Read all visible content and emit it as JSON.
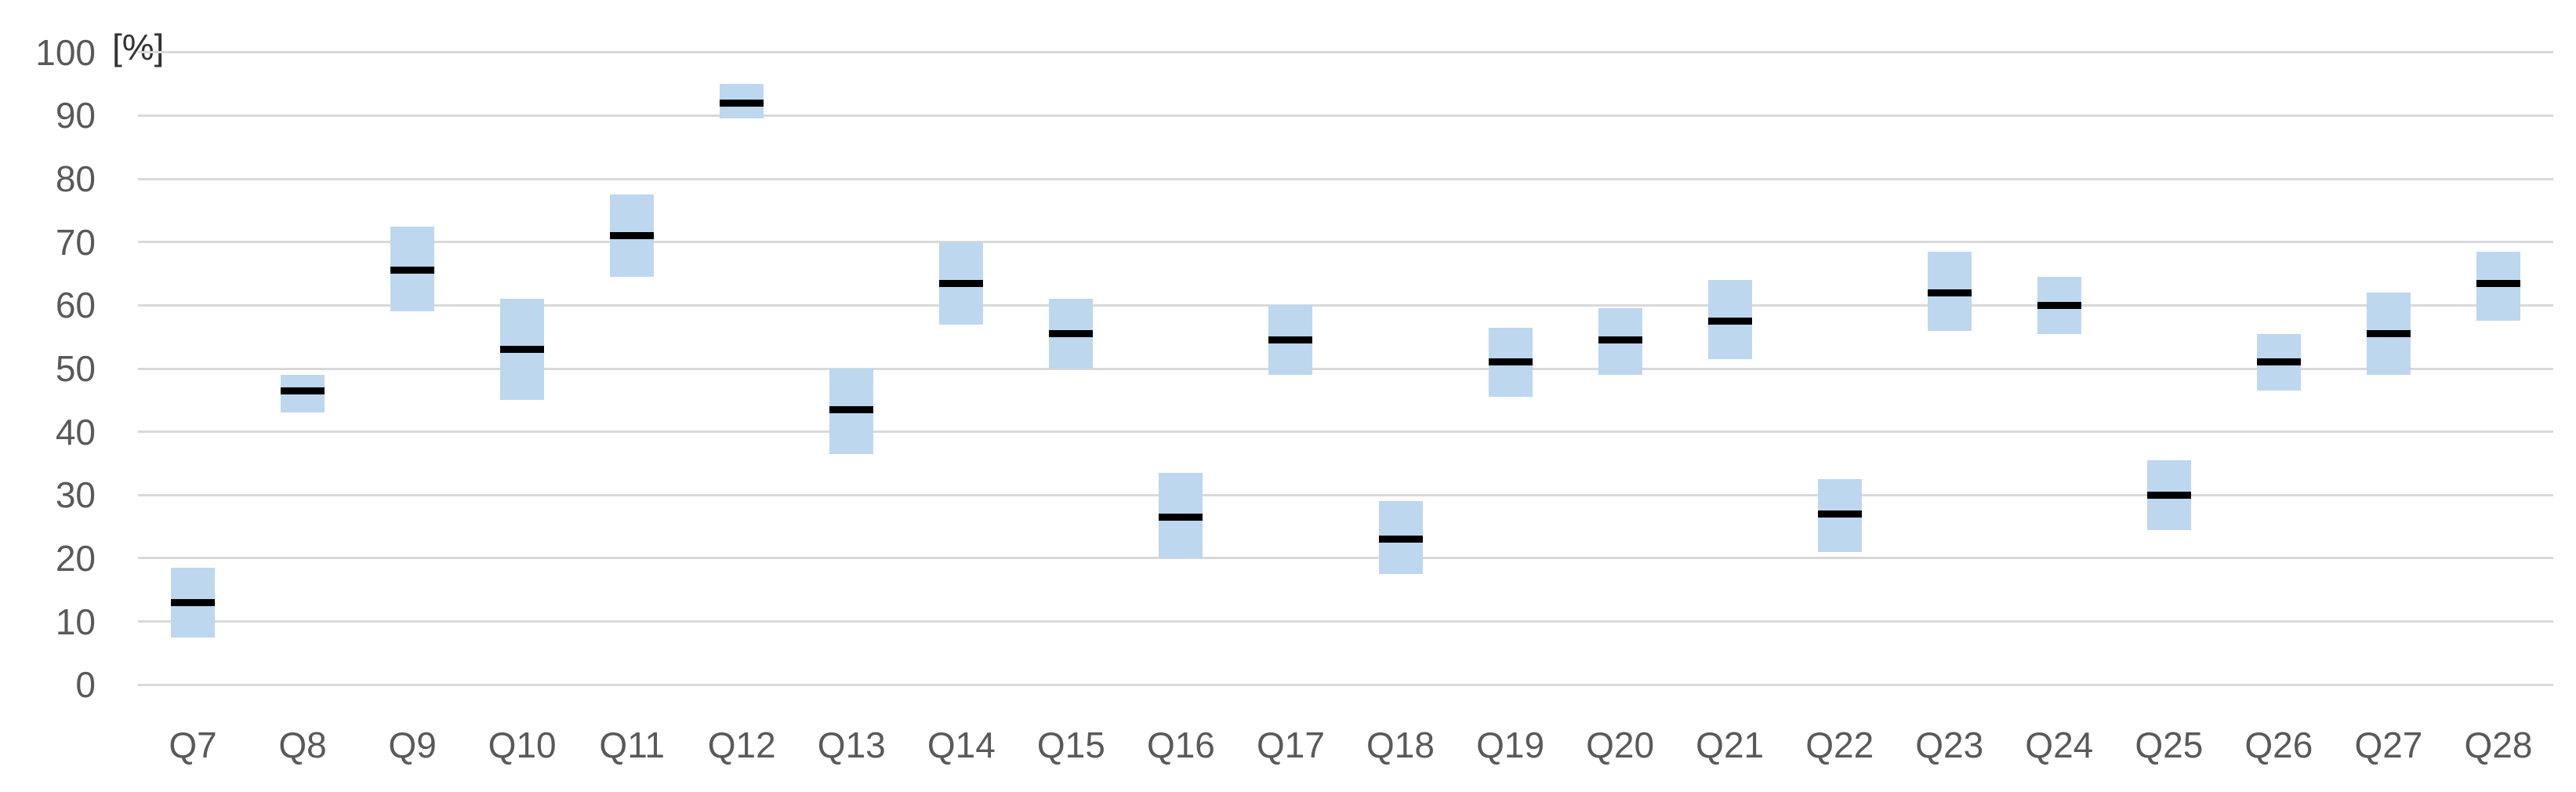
{
  "chart_data": {
    "type": "bar",
    "subtype": "floating-range-with-median",
    "title": "",
    "unit_label": "[%]",
    "xlabel": "",
    "ylabel": "[%]",
    "ylim": [
      0,
      100
    ],
    "yticks": [
      0,
      10,
      20,
      30,
      40,
      50,
      60,
      70,
      80,
      90,
      100
    ],
    "grid": true,
    "legend": false,
    "categories": [
      "Q7",
      "Q8",
      "Q9",
      "Q10",
      "Q11",
      "Q12",
      "Q13",
      "Q14",
      "Q15",
      "Q16",
      "Q17",
      "Q18",
      "Q19",
      "Q20",
      "Q21",
      "Q22",
      "Q23",
      "Q24",
      "Q25",
      "Q26",
      "Q27",
      "Q28"
    ],
    "series": [
      {
        "name": "range-low",
        "values": [
          7.5,
          43,
          59,
          45,
          64.5,
          89.5,
          36.5,
          57,
          50,
          20,
          49,
          17.5,
          45.5,
          49,
          51.5,
          21,
          56,
          55.5,
          24.5,
          46.5,
          49,
          57.5
        ]
      },
      {
        "name": "range-high",
        "values": [
          18.5,
          49,
          72.5,
          61,
          77.5,
          95,
          50,
          70,
          61,
          33.5,
          60,
          29,
          56.5,
          59.5,
          64,
          32.5,
          68.5,
          64.5,
          35.5,
          55.5,
          62,
          68.5
        ]
      },
      {
        "name": "median",
        "values": [
          13,
          46.5,
          65.5,
          53,
          71,
          92,
          43.5,
          63.5,
          55.5,
          26.5,
          54.5,
          23,
          51,
          54.5,
          57.5,
          27,
          62,
          60,
          30,
          51,
          55.5,
          63.5
        ]
      }
    ],
    "colors": {
      "box_fill": "#BDD7EE",
      "median_line": "#000000",
      "gridline": "#D9D9D9",
      "tick_text": "#595959",
      "unit_text": "#333333",
      "background": "#FFFFFF"
    }
  }
}
